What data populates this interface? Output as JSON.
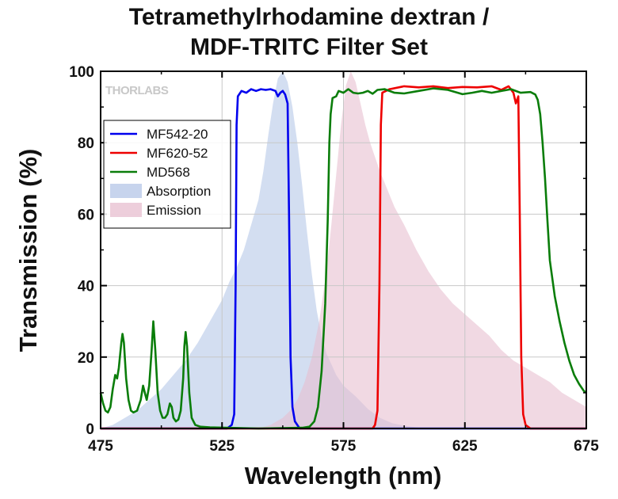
{
  "title_line1": "Tetramethylrhodamine dextran /",
  "title_line2": "MDF-TRITC Filter Set",
  "logo": "THORLABS",
  "chart_data": {
    "type": "line",
    "xlabel": "Wavelength (nm)",
    "ylabel": "Transmission (%)",
    "xlim": [
      475,
      675
    ],
    "ylim": [
      0,
      100
    ],
    "xticks": [
      475,
      525,
      575,
      625,
      675
    ],
    "yticks": [
      0,
      20,
      40,
      60,
      80,
      100
    ],
    "grid": true,
    "legend_position": "top-left",
    "series": [
      {
        "name": "MF542-20",
        "kind": "line",
        "color": "#0000ee",
        "points": [
          [
            475,
            0
          ],
          [
            527,
            0
          ],
          [
            529,
            1
          ],
          [
            530,
            4
          ],
          [
            530.6,
            40
          ],
          [
            531,
            85
          ],
          [
            531.5,
            93
          ],
          [
            533,
            94.5
          ],
          [
            535,
            94
          ],
          [
            537,
            95
          ],
          [
            539,
            94.5
          ],
          [
            541,
            95
          ],
          [
            543,
            94.8
          ],
          [
            545,
            95
          ],
          [
            547,
            94.5
          ],
          [
            548,
            93
          ],
          [
            549,
            94
          ],
          [
            550,
            94.5
          ],
          [
            551,
            93.5
          ],
          [
            552,
            91
          ],
          [
            552.6,
            60
          ],
          [
            553.2,
            20
          ],
          [
            554,
            6
          ],
          [
            555,
            2
          ],
          [
            557,
            0
          ],
          [
            675,
            0
          ]
        ]
      },
      {
        "name": "MF620-52",
        "kind": "line",
        "color": "#ee0000",
        "points": [
          [
            475,
            0
          ],
          [
            587,
            0
          ],
          [
            588,
            1
          ],
          [
            589,
            5
          ],
          [
            589.8,
            40
          ],
          [
            590.4,
            85
          ],
          [
            591,
            94
          ],
          [
            594,
            95
          ],
          [
            600,
            95.8
          ],
          [
            606,
            95.5
          ],
          [
            612,
            95.8
          ],
          [
            618,
            95.3
          ],
          [
            624,
            95.6
          ],
          [
            630,
            95.5
          ],
          [
            636,
            95.8
          ],
          [
            640,
            94.8
          ],
          [
            643,
            95.8
          ],
          [
            645,
            94
          ],
          [
            646,
            91
          ],
          [
            647,
            93
          ],
          [
            647.6,
            60
          ],
          [
            648.2,
            20
          ],
          [
            649,
            4
          ],
          [
            650,
            1
          ],
          [
            652,
            0
          ],
          [
            675,
            0
          ]
        ]
      },
      {
        "name": "MD568",
        "kind": "line",
        "color": "#0a7d0a",
        "points": [
          [
            475,
            10
          ],
          [
            476,
            7
          ],
          [
            477,
            5
          ],
          [
            478,
            4.5
          ],
          [
            479,
            6
          ],
          [
            480,
            11
          ],
          [
            481,
            15
          ],
          [
            481.8,
            14
          ],
          [
            482.5,
            17
          ],
          [
            483.5,
            24
          ],
          [
            484,
            26.5
          ],
          [
            484.6,
            24
          ],
          [
            485.5,
            14
          ],
          [
            486.5,
            8
          ],
          [
            487.5,
            5
          ],
          [
            488.5,
            4.5
          ],
          [
            490,
            5
          ],
          [
            491.5,
            8
          ],
          [
            492.5,
            12
          ],
          [
            493.2,
            10
          ],
          [
            494,
            8
          ],
          [
            495,
            12
          ],
          [
            496,
            22
          ],
          [
            496.7,
            30
          ],
          [
            497.5,
            22
          ],
          [
            498.5,
            10
          ],
          [
            499.5,
            5
          ],
          [
            500.5,
            3
          ],
          [
            501.5,
            3
          ],
          [
            502.5,
            4
          ],
          [
            503.5,
            7
          ],
          [
            504.3,
            6
          ],
          [
            505,
            3
          ],
          [
            506,
            2
          ],
          [
            507,
            2.5
          ],
          [
            508,
            5
          ],
          [
            509,
            14
          ],
          [
            509.5,
            23
          ],
          [
            510,
            27
          ],
          [
            510.6,
            23
          ],
          [
            511.5,
            10
          ],
          [
            512.5,
            3
          ],
          [
            514,
            1
          ],
          [
            516,
            0.5
          ],
          [
            520,
            0.3
          ],
          [
            540,
            0
          ],
          [
            558,
            0.2
          ],
          [
            561,
            0.5
          ],
          [
            563,
            2
          ],
          [
            564.5,
            6
          ],
          [
            566,
            16
          ],
          [
            567.5,
            35
          ],
          [
            568.5,
            58
          ],
          [
            569.2,
            80
          ],
          [
            569.7,
            88
          ],
          [
            570.5,
            92.5
          ],
          [
            572,
            93
          ],
          [
            573,
            94.5
          ],
          [
            575,
            94
          ],
          [
            577,
            95
          ],
          [
            579,
            94
          ],
          [
            581,
            93.8
          ],
          [
            583,
            94
          ],
          [
            585,
            94.5
          ],
          [
            587,
            93.7
          ],
          [
            589,
            94.8
          ],
          [
            592,
            95
          ],
          [
            596,
            94
          ],
          [
            600,
            93.8
          ],
          [
            606,
            94.5
          ],
          [
            612,
            95.2
          ],
          [
            618,
            94.8
          ],
          [
            624,
            93.6
          ],
          [
            628,
            94
          ],
          [
            632,
            94.5
          ],
          [
            636,
            94
          ],
          [
            640,
            94.5
          ],
          [
            644,
            95
          ],
          [
            648,
            94
          ],
          [
            652,
            94.2
          ],
          [
            654,
            93.5
          ],
          [
            655,
            92
          ],
          [
            656,
            88
          ],
          [
            657,
            80
          ],
          [
            658,
            70
          ],
          [
            659,
            58
          ],
          [
            660,
            47
          ],
          [
            662,
            37
          ],
          [
            664,
            30
          ],
          [
            666,
            24
          ],
          [
            668,
            19
          ],
          [
            670,
            15
          ],
          [
            672,
            12.5
          ],
          [
            674,
            10.5
          ],
          [
            675,
            10
          ]
        ]
      },
      {
        "name": "Absorption",
        "kind": "area",
        "color": "#b4c6e7",
        "points": [
          [
            475,
            0
          ],
          [
            480,
            1
          ],
          [
            485,
            3
          ],
          [
            490,
            5
          ],
          [
            495,
            8
          ],
          [
            500,
            11
          ],
          [
            505,
            15
          ],
          [
            510,
            19
          ],
          [
            515,
            24
          ],
          [
            520,
            30
          ],
          [
            525,
            36
          ],
          [
            528,
            41
          ],
          [
            531,
            45
          ],
          [
            534,
            50
          ],
          [
            537,
            57
          ],
          [
            540,
            64
          ],
          [
            542,
            72
          ],
          [
            544,
            82
          ],
          [
            546,
            91
          ],
          [
            548,
            98
          ],
          [
            550,
            100
          ],
          [
            552,
            97
          ],
          [
            554,
            90
          ],
          [
            556,
            80
          ],
          [
            558,
            68
          ],
          [
            560,
            55
          ],
          [
            562,
            43
          ],
          [
            564,
            33
          ],
          [
            566,
            26
          ],
          [
            568,
            21
          ],
          [
            570,
            18
          ],
          [
            572,
            15
          ],
          [
            575,
            12
          ],
          [
            580,
            9
          ],
          [
            585,
            5.5
          ],
          [
            590,
            3
          ],
          [
            595,
            1.5
          ],
          [
            600,
            0.8
          ],
          [
            605,
            0.3
          ],
          [
            610,
            0
          ]
        ]
      },
      {
        "name": "Emission",
        "kind": "area",
        "color": "#e7bdcf",
        "points": [
          [
            540,
            0
          ],
          [
            545,
            1
          ],
          [
            550,
            3
          ],
          [
            553,
            5
          ],
          [
            556,
            8
          ],
          [
            559,
            13
          ],
          [
            562,
            20
          ],
          [
            565,
            30
          ],
          [
            568,
            44
          ],
          [
            570,
            57
          ],
          [
            572,
            71
          ],
          [
            574,
            85
          ],
          [
            576,
            96
          ],
          [
            578,
            100
          ],
          [
            580,
            97
          ],
          [
            582,
            91
          ],
          [
            584,
            85
          ],
          [
            586,
            80
          ],
          [
            588,
            76
          ],
          [
            590,
            72
          ],
          [
            593,
            67
          ],
          [
            596,
            62
          ],
          [
            600,
            57
          ],
          [
            605,
            50
          ],
          [
            610,
            44
          ],
          [
            615,
            39
          ],
          [
            620,
            35
          ],
          [
            625,
            32
          ],
          [
            630,
            29
          ],
          [
            635,
            26
          ],
          [
            640,
            22
          ],
          [
            645,
            19
          ],
          [
            650,
            17
          ],
          [
            655,
            15
          ],
          [
            660,
            13
          ],
          [
            665,
            10
          ],
          [
            670,
            8
          ],
          [
            675,
            6
          ]
        ]
      }
    ]
  }
}
